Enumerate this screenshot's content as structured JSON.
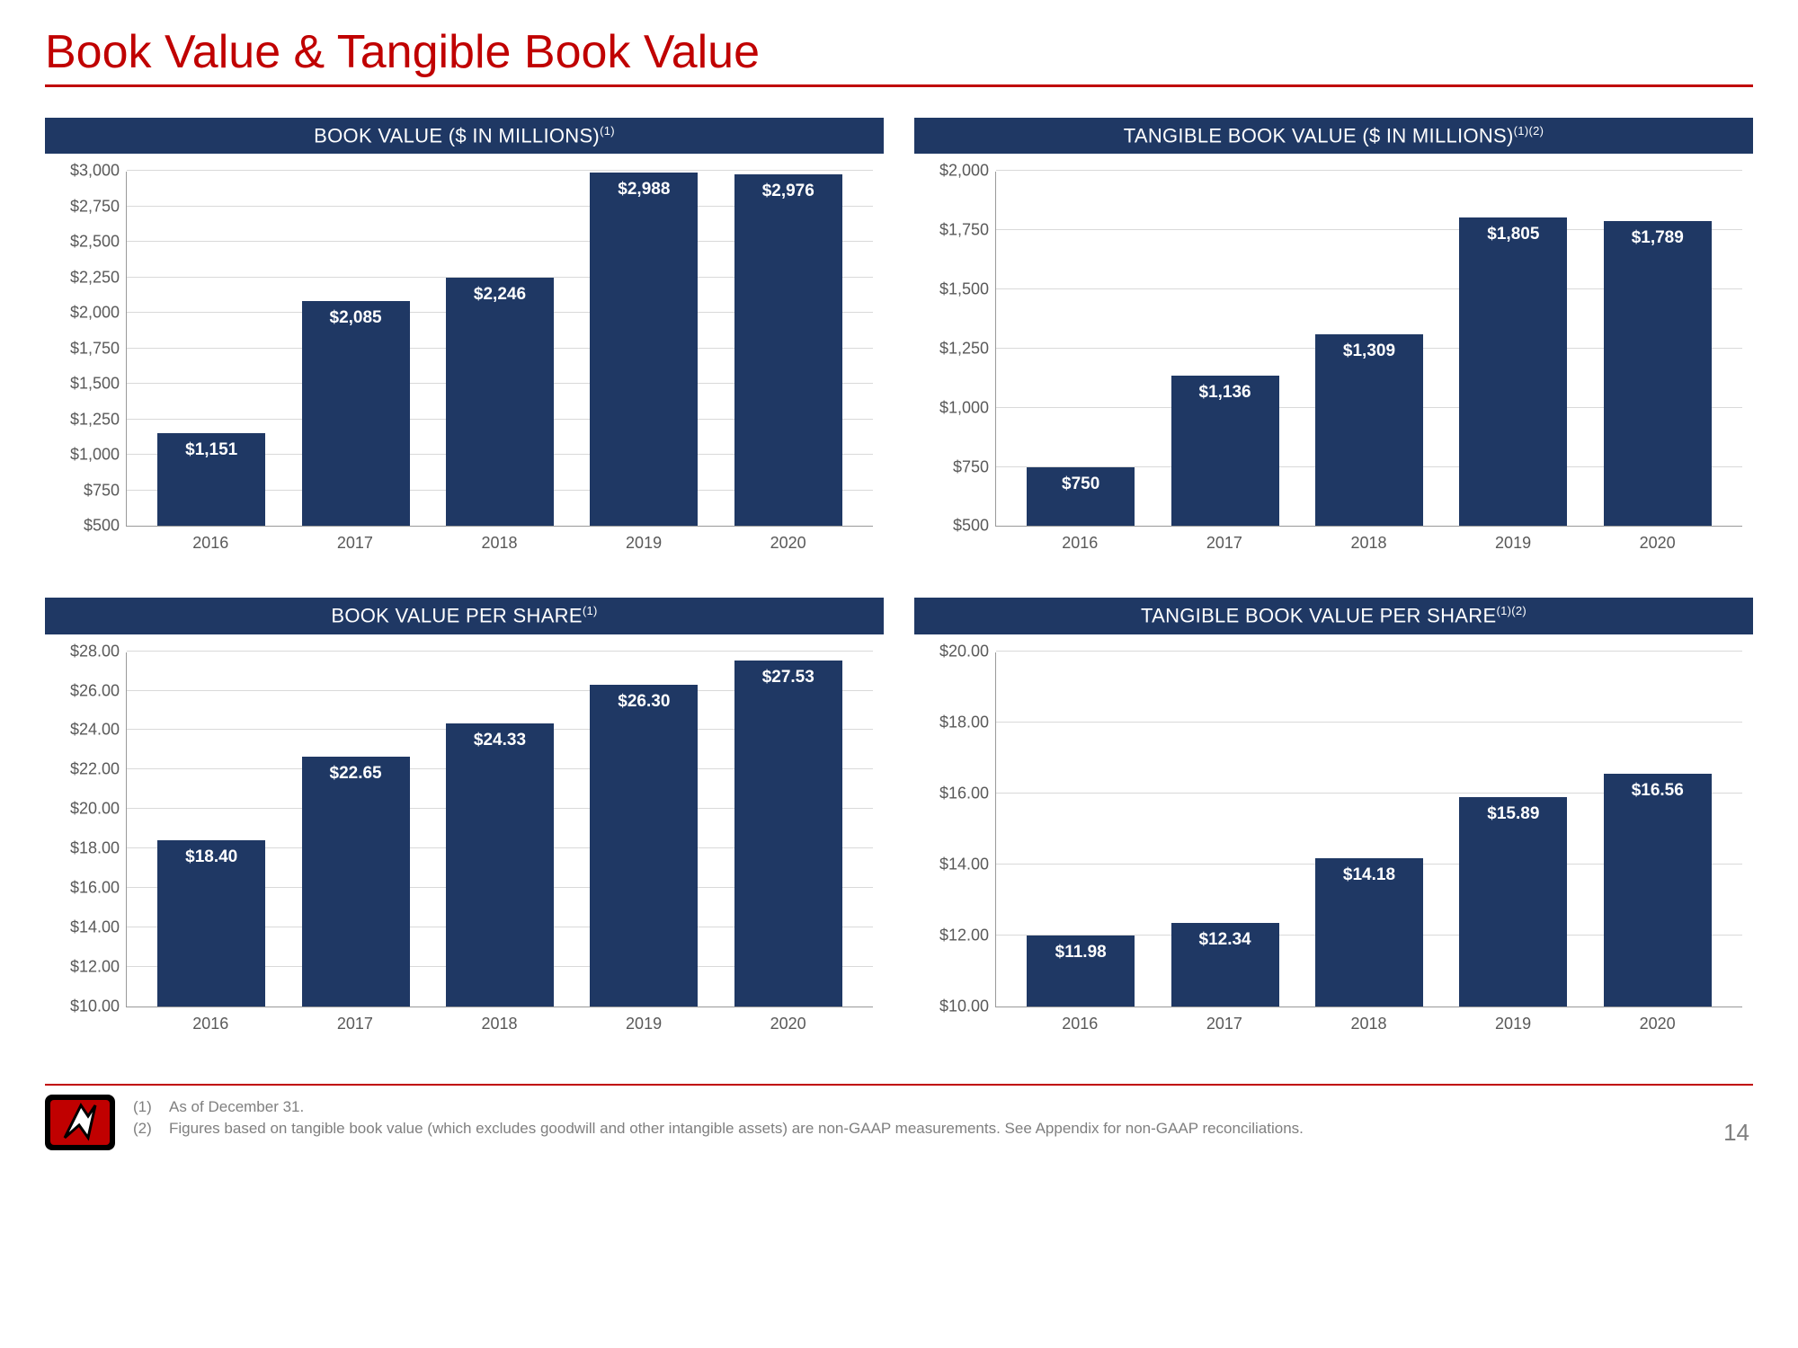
{
  "title": "Book Value & Tangible Book Value",
  "page_number": "14",
  "colors": {
    "accent_red": "#c00000",
    "bar_fill": "#1f3864",
    "header_bg": "#1f3864",
    "header_text": "#ffffff",
    "grid": "#d9d9d9",
    "axis": "#999999",
    "tick_text": "#595959",
    "value_text": "#ffffff",
    "footnote_text": "#7f7f7f"
  },
  "charts": [
    {
      "id": "book-value-millions",
      "title_html": "BOOK VALUE ($ IN MILLIONS)<sup>(1)</sup>",
      "type": "bar",
      "categories": [
        "2016",
        "2017",
        "2018",
        "2019",
        "2020"
      ],
      "values": [
        1151,
        2085,
        2246,
        2988,
        2976
      ],
      "value_fmt": "int_dollar",
      "ylim": [
        500,
        3000
      ],
      "ytick_step": 250,
      "ytick_fmt": "int_dollar"
    },
    {
      "id": "tangible-book-value-millions",
      "title_html": "TANGIBLE BOOK VALUE ($ IN MILLIONS)<sup>(1)(2)</sup>",
      "type": "bar",
      "categories": [
        "2016",
        "2017",
        "2018",
        "2019",
        "2020"
      ],
      "values": [
        750,
        1136,
        1309,
        1805,
        1789
      ],
      "value_fmt": "int_dollar",
      "ylim": [
        500,
        2000
      ],
      "ytick_step": 250,
      "ytick_fmt": "int_dollar"
    },
    {
      "id": "book-value-per-share",
      "title_html": "BOOK VALUE PER SHARE<sup>(1)</sup>",
      "type": "bar",
      "categories": [
        "2016",
        "2017",
        "2018",
        "2019",
        "2020"
      ],
      "values": [
        18.4,
        22.65,
        24.33,
        26.3,
        27.53
      ],
      "value_fmt": "dec2_dollar",
      "ylim": [
        10,
        28
      ],
      "ytick_step": 2,
      "ytick_fmt": "dec2_dollar"
    },
    {
      "id": "tangible-book-value-per-share",
      "title_html": "TANGIBLE BOOK VALUE PER SHARE<sup>(1)(2)</sup>",
      "type": "bar",
      "categories": [
        "2016",
        "2017",
        "2018",
        "2019",
        "2020"
      ],
      "values": [
        11.98,
        12.34,
        14.18,
        15.89,
        16.56
      ],
      "value_fmt": "dec2_dollar",
      "ylim": [
        10,
        20
      ],
      "ytick_step": 2,
      "ytick_fmt": "dec2_dollar"
    }
  ],
  "footnotes": [
    {
      "num": "(1)",
      "text": "As of December 31."
    },
    {
      "num": "(2)",
      "text": "Figures based on tangible book value (which excludes goodwill and other intangible assets) are non-GAAP measurements. See Appendix for non-GAAP reconciliations."
    }
  ]
}
